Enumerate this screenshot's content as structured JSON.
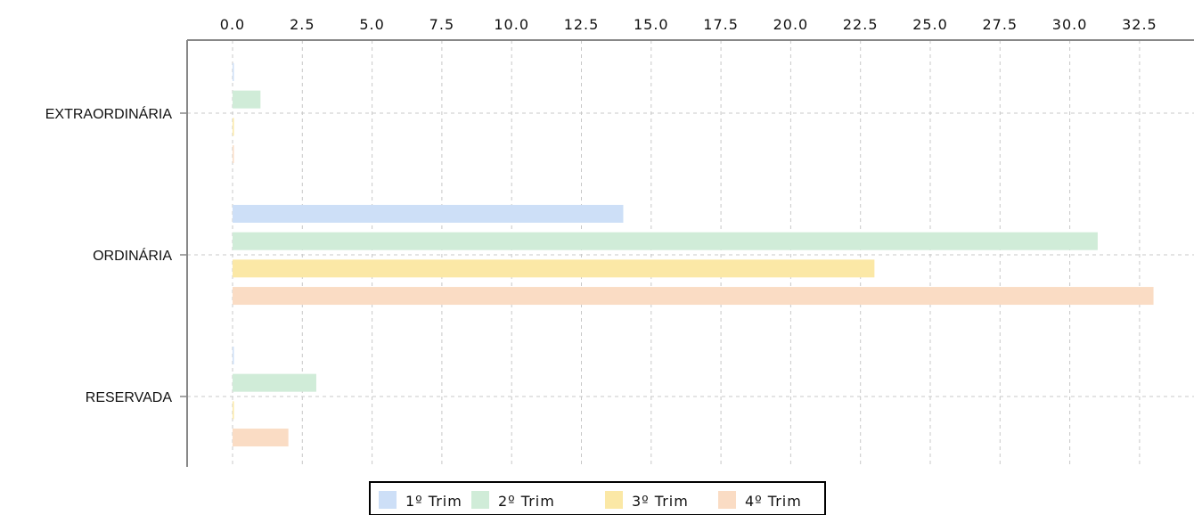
{
  "chart_data": {
    "type": "bar",
    "orientation": "horizontal",
    "categories": [
      "EXTRAORDINÁRIA",
      "ORDINÁRIA",
      "RESERVADA"
    ],
    "series": [
      {
        "name": "1º Trim",
        "color": "#cddff7",
        "values": [
          0,
          14,
          0
        ]
      },
      {
        "name": "2º Trim",
        "color": "#d0ecd8",
        "values": [
          1,
          31,
          3
        ]
      },
      {
        "name": "3º Trim",
        "color": "#fbe8a6",
        "values": [
          0,
          23,
          0
        ]
      },
      {
        "name": "4º Trim",
        "color": "#fadcc4",
        "values": [
          0,
          33,
          2
        ]
      }
    ],
    "x_ticks": [
      "0.0",
      "2.5",
      "5.0",
      "7.5",
      "10.0",
      "12.5",
      "15.0",
      "17.5",
      "20.0",
      "22.5",
      "25.0",
      "27.5",
      "30.0",
      "32.5"
    ],
    "xlim": [
      0,
      34.5
    ],
    "x_axis_position": "top",
    "grid": true,
    "legend_position": "bottom-center",
    "title": "",
    "xlabel": "",
    "ylabel": ""
  }
}
